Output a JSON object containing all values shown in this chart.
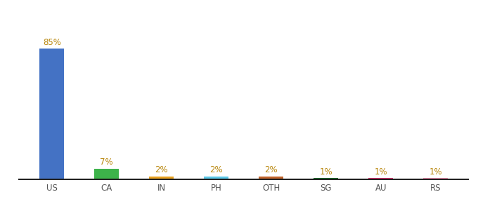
{
  "categories": [
    "US",
    "CA",
    "IN",
    "PH",
    "OTH",
    "SG",
    "AU",
    "RS"
  ],
  "values": [
    85,
    7,
    2,
    2,
    2,
    1,
    1,
    1
  ],
  "bar_colors": [
    "#4472c4",
    "#3db34a",
    "#e8a020",
    "#5bc8e8",
    "#c0622a",
    "#1a6b2a",
    "#e03070",
    "#f090b0"
  ],
  "label_color": "#b8860b",
  "background_color": "#ffffff",
  "ylim": [
    0,
    100
  ],
  "bar_width": 0.45,
  "label_fontsize": 8.5,
  "tick_fontsize": 8.5
}
